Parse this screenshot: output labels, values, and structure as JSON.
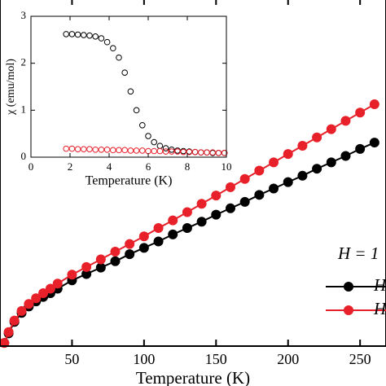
{
  "chart_data": [
    {
      "type": "line",
      "x_label": "Temperature (K)",
      "xlim": [
        0,
        268
      ],
      "xticks": [
        50,
        100,
        150,
        200,
        250
      ],
      "ylim": [
        0,
        5.45
      ],
      "annotation": "H = 1",
      "x": [
        3,
        6,
        10,
        15,
        20,
        25,
        30,
        35,
        40,
        50,
        60,
        70,
        80,
        90,
        100,
        110,
        120,
        130,
        140,
        150,
        160,
        170,
        180,
        190,
        200,
        210,
        220,
        230,
        240,
        250,
        260
      ],
      "series": [
        {
          "name": "H",
          "color": "#000000",
          "values": [
            0.05,
            0.2,
            0.38,
            0.52,
            0.62,
            0.7,
            0.77,
            0.83,
            0.9,
            1.03,
            1.13,
            1.23,
            1.33,
            1.44,
            1.54,
            1.64,
            1.75,
            1.85,
            1.95,
            2.06,
            2.16,
            2.26,
            2.37,
            2.47,
            2.57,
            2.67,
            2.78,
            2.88,
            2.98,
            3.09,
            3.19
          ]
        },
        {
          "name": "H",
          "color": "#e8202a",
          "values": [
            0.05,
            0.22,
            0.4,
            0.55,
            0.66,
            0.75,
            0.83,
            0.9,
            0.98,
            1.12,
            1.24,
            1.36,
            1.48,
            1.6,
            1.72,
            1.85,
            1.97,
            2.1,
            2.23,
            2.36,
            2.49,
            2.62,
            2.75,
            2.88,
            3.01,
            3.14,
            3.27,
            3.4,
            3.53,
            3.66,
            3.79
          ]
        }
      ]
    },
    {
      "type": "scatter",
      "x_label": "Temperature (K)",
      "y_label": "χ (emu/mol)",
      "xlim": [
        0,
        10
      ],
      "xticks": [
        0,
        2,
        4,
        6,
        8,
        10
      ],
      "ylim": [
        0,
        3
      ],
      "yticks": [
        0,
        1,
        2,
        3
      ],
      "x": [
        1.8,
        2.1,
        2.4,
        2.7,
        3.0,
        3.3,
        3.6,
        3.9,
        4.2,
        4.5,
        4.8,
        5.1,
        5.4,
        5.7,
        6.0,
        6.3,
        6.6,
        6.9,
        7.2,
        7.5,
        7.8,
        8.1,
        8.4,
        8.7,
        9.0,
        9.3,
        9.6,
        9.9
      ],
      "series": [
        {
          "color": "#000000",
          "values": [
            2.62,
            2.62,
            2.61,
            2.6,
            2.59,
            2.57,
            2.53,
            2.45,
            2.32,
            2.12,
            1.8,
            1.4,
            1.0,
            0.68,
            0.45,
            0.32,
            0.24,
            0.19,
            0.16,
            0.14,
            0.13,
            0.12,
            0.11,
            0.1,
            0.1,
            0.09,
            0.09,
            0.09
          ]
        },
        {
          "color": "#e8202a",
          "values": [
            0.18,
            0.18,
            0.17,
            0.17,
            0.17,
            0.16,
            0.16,
            0.16,
            0.15,
            0.15,
            0.15,
            0.14,
            0.14,
            0.14,
            0.13,
            0.13,
            0.13,
            0.12,
            0.12,
            0.12,
            0.11,
            0.11,
            0.11,
            0.1,
            0.1,
            0.1,
            0.09,
            0.09
          ]
        }
      ]
    }
  ]
}
